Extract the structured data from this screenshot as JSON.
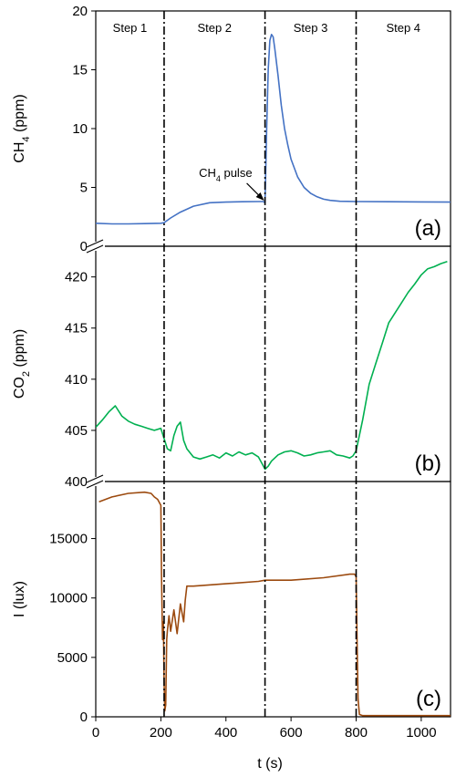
{
  "chart_data": {
    "type": "line",
    "xlabel": "t (s)",
    "xlim": [
      0,
      1090
    ],
    "x_ticks": [
      "0",
      "200",
      "400",
      "600",
      "800",
      "1000"
    ],
    "step_boundaries": [
      210,
      520,
      800
    ],
    "step_labels": [
      {
        "text": "Step 1",
        "x": 105
      },
      {
        "text": "Step 2",
        "x": 365
      },
      {
        "text": "Step 3",
        "x": 660
      },
      {
        "text": "Step 4",
        "x": 945
      }
    ],
    "panels": [
      {
        "id": "ch4",
        "ylabel_main": "CH",
        "ylabel_sub": "4",
        "ylabel_suffix": " (ppm)",
        "tag": "(a)",
        "color": "#4472C4",
        "ylim": [
          0,
          20
        ],
        "y_ticks": [
          "0",
          "5",
          "10",
          "15",
          "20"
        ],
        "axis_break": false,
        "annotation": {
          "text_main": "CH",
          "text_sub": "4",
          "text_suffix": " pulse",
          "x": 520,
          "y": 3.8
        },
        "series": {
          "name": "CH4",
          "x": [
            0,
            50,
            100,
            150,
            200,
            210,
            230,
            260,
            300,
            350,
            400,
            450,
            500,
            515,
            520,
            525,
            530,
            535,
            540,
            545,
            550,
            560,
            570,
            580,
            590,
            600,
            620,
            640,
            660,
            680,
            700,
            720,
            750,
            800,
            900,
            1000,
            1090
          ],
          "y": [
            1.95,
            1.9,
            1.9,
            1.92,
            1.95,
            2.0,
            2.4,
            2.9,
            3.4,
            3.7,
            3.75,
            3.78,
            3.8,
            3.8,
            3.7,
            10.0,
            15.0,
            17.5,
            18.0,
            17.8,
            16.8,
            14.5,
            12.0,
            10.0,
            8.6,
            7.4,
            5.9,
            5.0,
            4.5,
            4.2,
            4.0,
            3.9,
            3.82,
            3.8,
            3.78,
            3.77,
            3.75
          ]
        }
      },
      {
        "id": "co2",
        "ylabel_main": "CO",
        "ylabel_sub": "2",
        "ylabel_suffix": " (ppm)",
        "tag": "(b)",
        "color": "#00B050",
        "ylim": [
          400,
          423
        ],
        "y_ticks": [
          "400",
          "405",
          "410",
          "415",
          "420"
        ],
        "axis_break": true,
        "series": {
          "name": "CO2",
          "x": [
            0,
            20,
            40,
            60,
            80,
            100,
            120,
            140,
            160,
            180,
            200,
            210,
            220,
            230,
            240,
            250,
            260,
            270,
            280,
            290,
            300,
            320,
            340,
            360,
            380,
            400,
            420,
            440,
            460,
            480,
            500,
            510,
            520,
            530,
            540,
            560,
            580,
            600,
            620,
            640,
            660,
            680,
            700,
            720,
            740,
            760,
            780,
            790,
            800,
            820,
            840,
            860,
            880,
            900,
            920,
            940,
            960,
            980,
            1000,
            1020,
            1040,
            1060,
            1080
          ],
          "y": [
            405.3,
            406.0,
            406.8,
            407.4,
            406.4,
            405.9,
            405.6,
            405.4,
            405.2,
            405.0,
            405.2,
            404.2,
            403.2,
            403.0,
            404.5,
            405.4,
            405.8,
            404.0,
            403.2,
            402.8,
            402.4,
            402.2,
            402.4,
            402.6,
            402.3,
            402.8,
            402.5,
            402.9,
            402.6,
            402.8,
            402.4,
            401.8,
            401.2,
            401.5,
            402.0,
            402.6,
            402.9,
            403.0,
            402.8,
            402.5,
            402.6,
            402.8,
            402.9,
            403.0,
            402.6,
            402.5,
            402.3,
            402.5,
            403.0,
            406.0,
            409.5,
            411.5,
            413.5,
            415.5,
            416.5,
            417.5,
            418.5,
            419.3,
            420.2,
            420.8,
            421.0,
            421.3,
            421.5
          ]
        }
      },
      {
        "id": "lux",
        "ylabel_main": "I (lux)",
        "ylabel_sub": "",
        "ylabel_suffix": "",
        "tag": "(c)",
        "color": "#9C4A0F",
        "ylim": [
          0,
          19800
        ],
        "y_ticks": [
          "0",
          "5000",
          "10000",
          "15000"
        ],
        "axis_break": true,
        "series": {
          "name": "I",
          "x": [
            10,
            50,
            100,
            150,
            170,
            180,
            190,
            200,
            202,
            205,
            208,
            210,
            212,
            215,
            218,
            220,
            225,
            230,
            240,
            250,
            260,
            270,
            275,
            280,
            300,
            400,
            500,
            520,
            600,
            700,
            780,
            795,
            800,
            803,
            806,
            810,
            820,
            900,
            1000,
            1090
          ],
          "y": [
            18100,
            18500,
            18800,
            18900,
            18800,
            18500,
            18300,
            17800,
            12000,
            6500,
            8000,
            3000,
            500,
            1000,
            6500,
            7200,
            8500,
            7200,
            9000,
            7000,
            9500,
            8000,
            9800,
            11000,
            11000,
            11200,
            11400,
            11500,
            11500,
            11700,
            12000,
            12000,
            11800,
            6000,
            1500,
            200,
            100,
            100,
            100,
            100
          ]
        }
      }
    ]
  }
}
